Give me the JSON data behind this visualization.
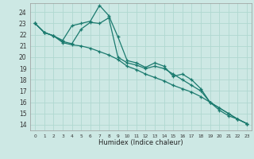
{
  "xlabel": "Humidex (Indice chaleur)",
  "background_color": "#cde8e4",
  "grid_color": "#b0d8d0",
  "line_color": "#1a7a6e",
  "xlim": [
    -0.5,
    23.5
  ],
  "ylim": [
    13.5,
    24.8
  ],
  "xticks": [
    0,
    1,
    2,
    3,
    4,
    5,
    6,
    7,
    8,
    9,
    10,
    11,
    12,
    13,
    14,
    15,
    16,
    17,
    18,
    19,
    20,
    21,
    22,
    23
  ],
  "yticks": [
    14,
    15,
    16,
    17,
    18,
    19,
    20,
    21,
    22,
    23,
    24
  ],
  "series1_x": [
    0,
    1,
    2,
    3,
    4,
    5,
    6,
    7,
    8,
    9,
    10,
    11,
    12,
    13,
    14,
    15,
    16,
    17,
    18,
    19,
    20,
    21,
    22,
    23
  ],
  "series1_y": [
    23.0,
    22.2,
    21.9,
    21.5,
    22.8,
    23.0,
    23.2,
    24.6,
    23.7,
    21.8,
    19.7,
    19.5,
    19.1,
    19.5,
    19.2,
    18.3,
    18.5,
    18.0,
    17.2,
    16.0,
    15.3,
    14.8,
    14.5,
    14.1
  ],
  "series2_x": [
    0,
    1,
    2,
    3,
    4,
    5,
    6,
    7,
    8,
    9,
    10,
    11,
    12,
    13,
    14,
    15,
    16,
    17,
    18,
    19,
    20,
    21,
    22,
    23
  ],
  "series2_y": [
    23.0,
    22.2,
    21.9,
    21.4,
    21.2,
    22.5,
    23.1,
    23.0,
    23.5,
    20.0,
    19.5,
    19.3,
    19.0,
    19.2,
    19.0,
    18.5,
    18.0,
    17.5,
    17.0,
    16.0,
    15.5,
    15.0,
    14.5,
    14.1
  ],
  "series3_x": [
    0,
    1,
    2,
    3,
    4,
    5,
    6,
    7,
    8,
    9,
    10,
    11,
    12,
    13,
    14,
    15,
    16,
    17,
    18,
    19,
    20,
    21,
    22,
    23
  ],
  "series3_y": [
    23.0,
    22.2,
    21.9,
    21.3,
    21.1,
    21.0,
    20.8,
    20.5,
    20.2,
    19.8,
    19.2,
    18.9,
    18.5,
    18.2,
    17.9,
    17.5,
    17.2,
    16.9,
    16.5,
    16.0,
    15.5,
    15.0,
    14.5,
    14.1
  ]
}
